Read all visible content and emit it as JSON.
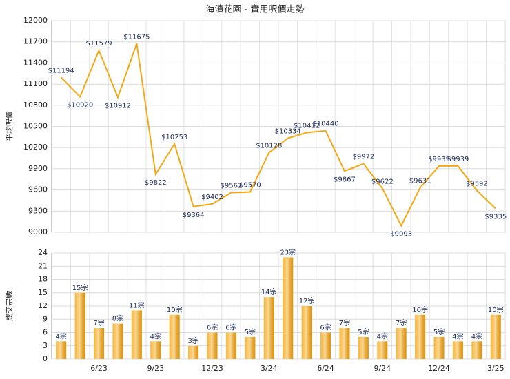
{
  "chart_data": [
    {
      "type": "line",
      "title": "海濱花園 - 實用呎價走勢",
      "y_label": "平均呎價",
      "series": [
        {
          "name": "平均呎價",
          "color": "#f5a814",
          "values": [
            11194,
            10920,
            11579,
            10912,
            11675,
            9822,
            10253,
            9364,
            9402,
            9562,
            9570,
            10128,
            10334,
            10412,
            10440,
            9867,
            9972,
            9622,
            9093,
            9631,
            9939,
            9939,
            9592,
            9335
          ],
          "value_labels": [
            "$11194",
            "$10920",
            "$11579",
            "$10912",
            "$11675",
            "$9822",
            "$10253",
            "$9364",
            "$9402",
            "$9562",
            "$9570",
            "$10128",
            "$10334",
            "$10412",
            "$10440",
            "$9867",
            "$9972",
            "$9622",
            "$9093",
            "$9631",
            "$9939",
            "$9939",
            "$9592",
            "$9335"
          ]
        }
      ],
      "ylim": [
        9000,
        12000
      ],
      "yticks": [
        9000,
        9300,
        9600,
        9900,
        10200,
        10500,
        10800,
        11100,
        11400,
        11700,
        12000
      ],
      "grid": true
    },
    {
      "type": "bar",
      "y_label": "成交宗數",
      "categories": [
        null,
        null,
        "6/23",
        null,
        null,
        "9/23",
        null,
        null,
        "12/23",
        null,
        null,
        "3/24",
        null,
        null,
        "6/24",
        null,
        null,
        "9/24",
        null,
        null,
        "12/24",
        null,
        null,
        "3/25"
      ],
      "series": [
        {
          "name": "成交宗數",
          "color": "#f5a814",
          "values": [
            4,
            15,
            7,
            8,
            11,
            4,
            10,
            3,
            6,
            6,
            5,
            14,
            23,
            12,
            6,
            7,
            5,
            4,
            7,
            10,
            5,
            4,
            4,
            10
          ],
          "value_labels": [
            "4宗",
            "15宗",
            "7宗",
            "8宗",
            "11宗",
            "4宗",
            "10宗",
            "3宗",
            "6宗",
            "6宗",
            "5宗",
            "14宗",
            "23宗",
            "12宗",
            "6宗",
            "7宗",
            "5宗",
            "4宗",
            "7宗",
            "10宗",
            "5宗",
            "4宗",
            "4宗",
            "10宗"
          ]
        }
      ],
      "ylim": [
        0,
        24
      ],
      "yticks": [
        0,
        3,
        6,
        9,
        12,
        15,
        18,
        21,
        24
      ],
      "grid": true
    }
  ]
}
